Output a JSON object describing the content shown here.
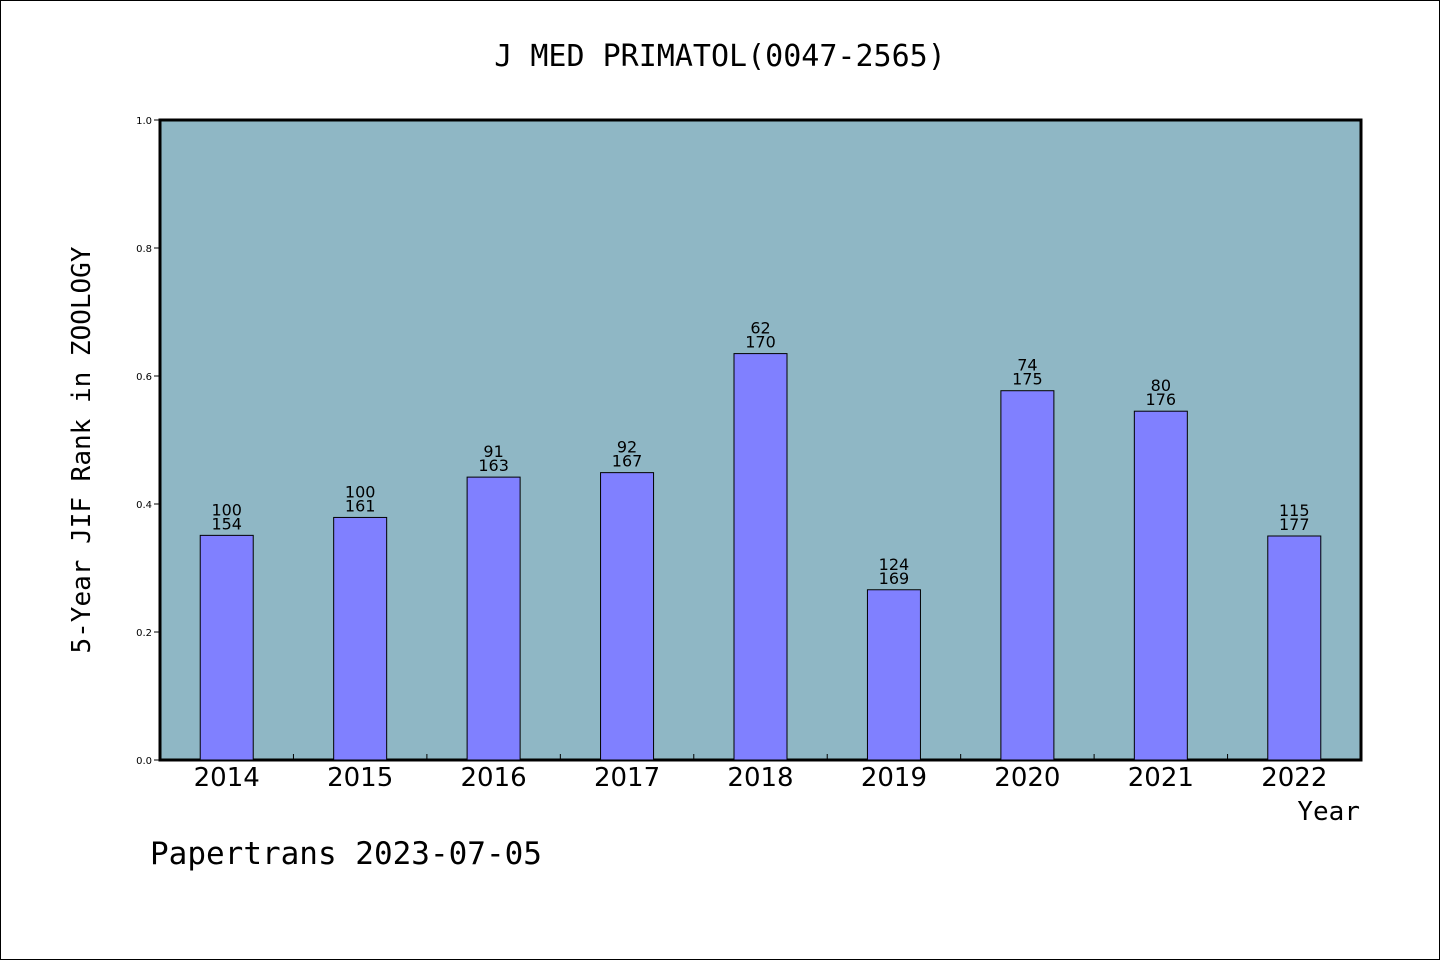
{
  "chart_data": {
    "type": "bar",
    "title": "J MED PRIMATOL(0047-2565)",
    "xlabel": "Year",
    "ylabel": "5-Year JIF Rank in ZOOLOGY",
    "ylim": [
      0,
      1.0
    ],
    "yticks": [
      "0.0",
      "0.2",
      "0.4",
      "0.6",
      "0.8",
      "1.0"
    ],
    "categories": [
      "2014",
      "2015",
      "2016",
      "2017",
      "2018",
      "2019",
      "2020",
      "2021",
      "2022"
    ],
    "values": [
      0.351,
      0.379,
      0.442,
      0.449,
      0.635,
      0.266,
      0.577,
      0.545,
      0.35
    ],
    "rank": [
      "100",
      "100",
      "91",
      "92",
      "62",
      "124",
      "74",
      "80",
      "115"
    ],
    "total": [
      "154",
      "161",
      "163",
      "167",
      "170",
      "169",
      "175",
      "176",
      "177"
    ],
    "grid": false,
    "colors": {
      "plot_bg": "#8fb7c5",
      "bar": "#8080ff",
      "bar_edge": "#000000"
    }
  },
  "footer": "Papertrans 2023-07-05"
}
